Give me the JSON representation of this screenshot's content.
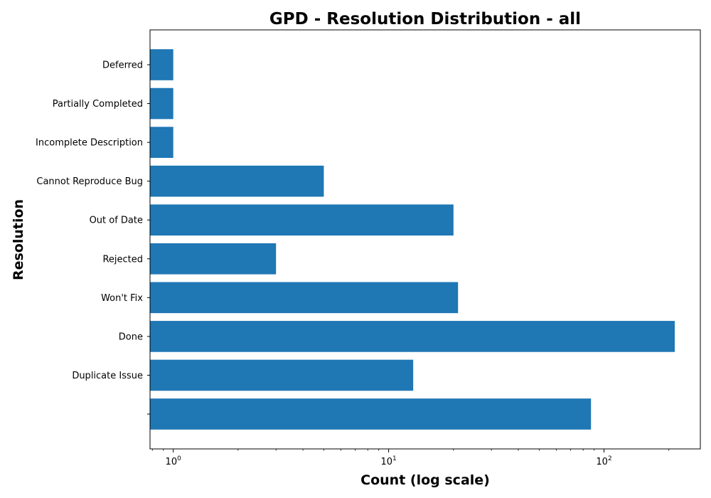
{
  "chart_data": {
    "type": "bar",
    "orientation": "horizontal",
    "title": "GPD - Resolution Distribution - all",
    "xlabel": "Count (log scale)",
    "ylabel": "Resolution",
    "x_scale": "log",
    "xlim": [
      0.78,
      280
    ],
    "x_ticks": [
      {
        "value": 1,
        "base": "10",
        "exp": "0"
      },
      {
        "value": 10,
        "base": "10",
        "exp": "1"
      },
      {
        "value": 100,
        "base": "10",
        "exp": "2"
      }
    ],
    "categories": [
      "",
      "Duplicate Issue",
      "Done",
      "Won't Fix",
      "Rejected",
      "Out of Date",
      "Cannot Reproduce Bug",
      "Incomplete Description",
      "Partially Completed",
      "Deferred"
    ],
    "values": [
      87,
      13,
      213,
      21,
      3,
      20,
      5,
      1,
      1,
      1
    ],
    "bar_color": "#1f77b4",
    "grid": false,
    "legend": "none"
  }
}
